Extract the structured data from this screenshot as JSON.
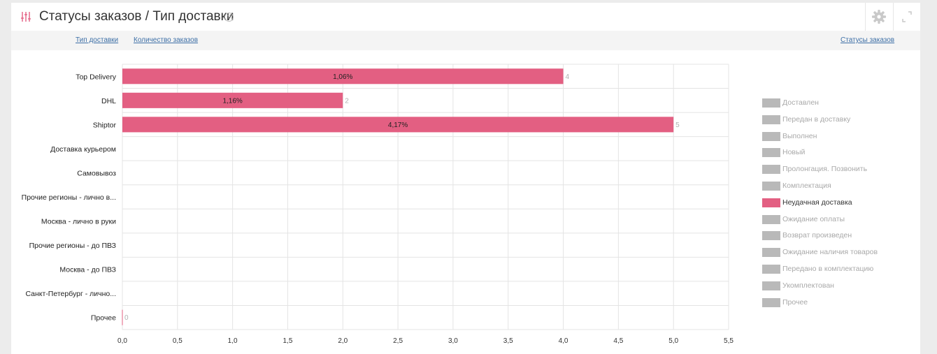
{
  "header": {
    "title": "Статусы заказов / Тип доставки",
    "help_icon": "help-circle-icon",
    "settings_icon": "gear-icon",
    "expand_icon": "expand-icon"
  },
  "subbar": {
    "link_delivery_type": "Тип доставки",
    "link_order_count": "Количество заказов",
    "link_order_statuses": "Статусы заказов"
  },
  "chart_data": {
    "type": "bar",
    "orientation": "horizontal",
    "categories": [
      "Top Delivery",
      "DHL",
      "Shiptor",
      "Доставка курьером",
      "Самовывоз",
      "Прочие регионы - лично в...",
      "Москва - лично в руки",
      "Прочие регионы - до ПВЗ",
      "Москва - до ПВЗ",
      "Санкт-Петербург - лично...",
      "Прочее"
    ],
    "values": [
      4,
      2,
      5,
      null,
      null,
      null,
      null,
      null,
      null,
      null,
      0
    ],
    "value_labels": [
      "4",
      "2",
      "5",
      "",
      "",
      "",
      "",
      "",
      "",
      "",
      "0"
    ],
    "percent_labels": [
      "1,06%",
      "1,16%",
      "4,17%",
      "",
      "",
      "",
      "",
      "",
      "",
      "",
      ""
    ],
    "x_ticks": [
      "0,0",
      "0,5",
      "1,0",
      "1,5",
      "2,0",
      "2,5",
      "3,0",
      "3,5",
      "4,0",
      "4,5",
      "5,0",
      "5,5"
    ],
    "xlim": [
      0,
      5.5
    ],
    "grid": true,
    "bar_color": "#e35f82",
    "legend_position": "right",
    "legend": [
      {
        "label": "Доставлен",
        "active": false
      },
      {
        "label": "Передан в доставку",
        "active": false
      },
      {
        "label": "Выполнен",
        "active": false
      },
      {
        "label": "Новый",
        "active": false
      },
      {
        "label": "Пролонгация. Позвонить",
        "active": false
      },
      {
        "label": "Комплектация",
        "active": false
      },
      {
        "label": "Неудачная доставка",
        "active": true
      },
      {
        "label": "Ожидание оплаты",
        "active": false
      },
      {
        "label": "Возврат произведен",
        "active": false
      },
      {
        "label": "Ожидание наличия товаров",
        "active": false
      },
      {
        "label": "Передано в комплектацию",
        "active": false
      },
      {
        "label": "Укомплектован",
        "active": false
      },
      {
        "label": "Прочее",
        "active": false
      }
    ],
    "colors": {
      "active": "#e35f82",
      "inactive": "#b9b9b9",
      "inactive_text": "#a9a9a9",
      "active_text": "#333333"
    }
  }
}
